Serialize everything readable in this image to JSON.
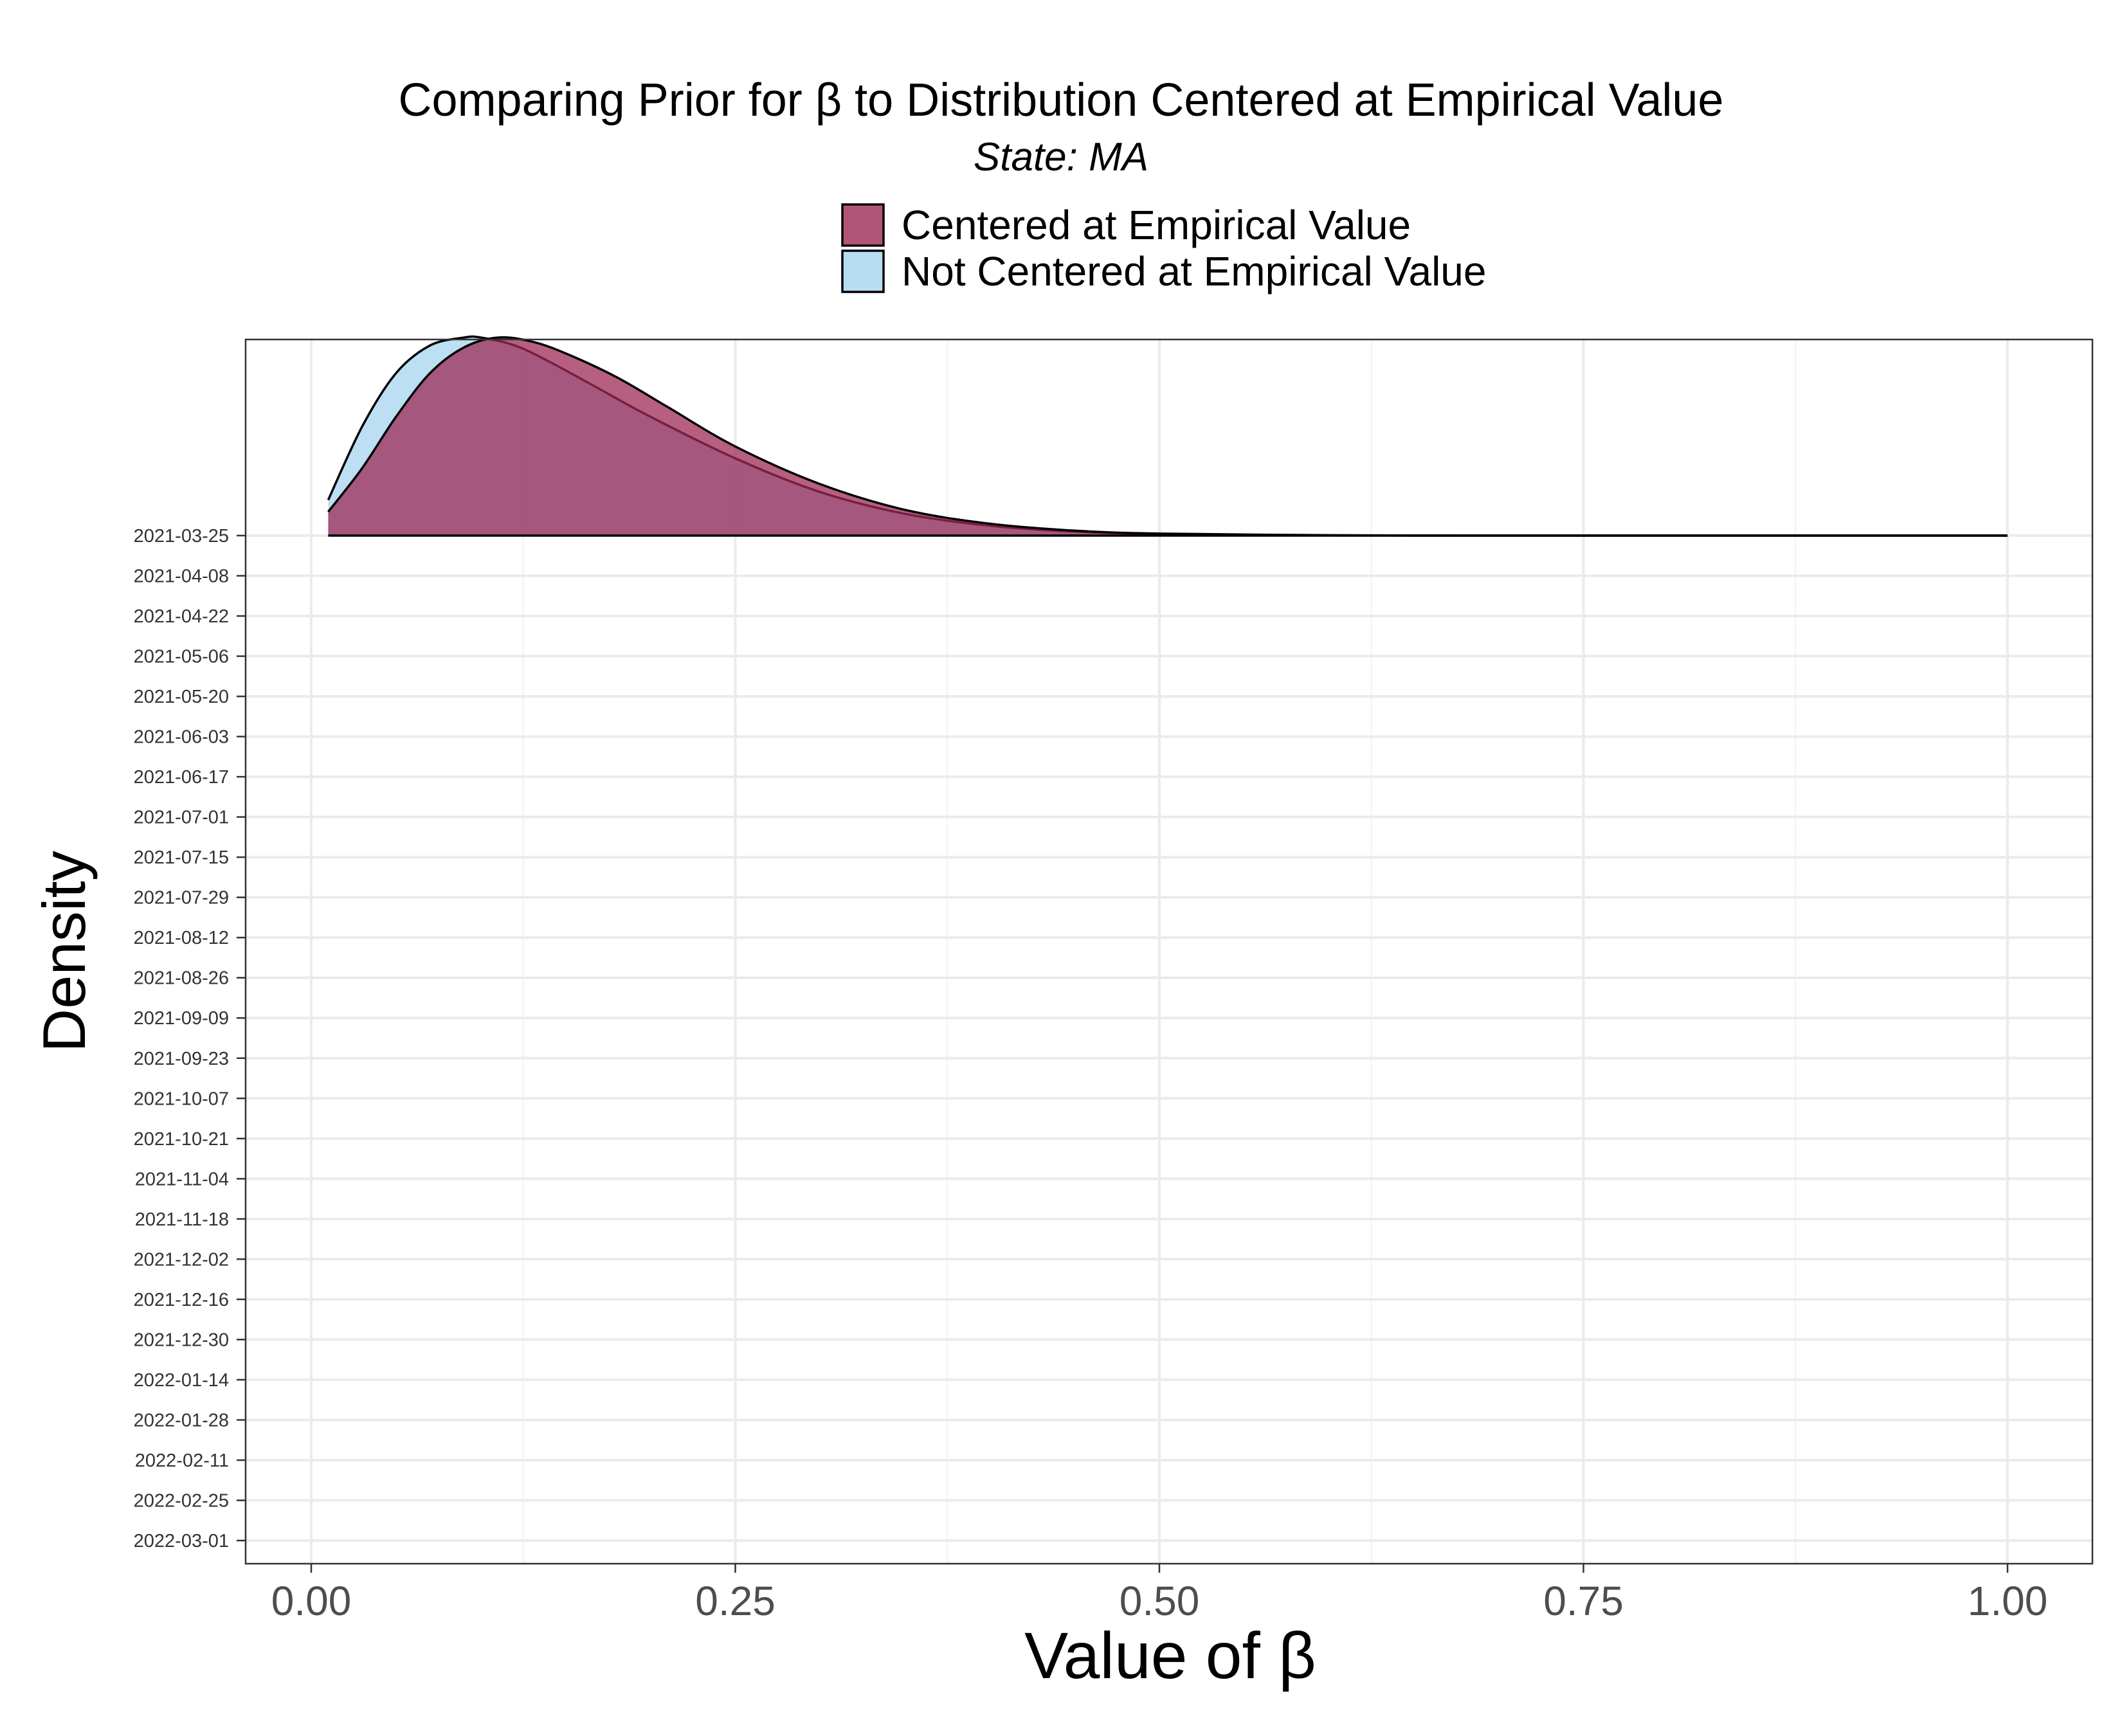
{
  "chart_data": {
    "type": "area",
    "title": "Comparing Prior for β to Distribution Centered at Empirical Value",
    "subtitle": "State: MA",
    "xlabel": "Value of β",
    "ylabel": "Density",
    "xlim": [
      0,
      1
    ],
    "x_ticks": [
      "0.00",
      "0.25",
      "0.50",
      "0.75",
      "1.00"
    ],
    "y_categories": [
      "2021-03-25",
      "2021-04-08",
      "2021-04-22",
      "2021-05-06",
      "2021-05-20",
      "2021-06-03",
      "2021-06-17",
      "2021-07-01",
      "2021-07-15",
      "2021-07-29",
      "2021-08-12",
      "2021-08-26",
      "2021-09-09",
      "2021-09-23",
      "2021-10-07",
      "2021-10-21",
      "2021-11-04",
      "2021-11-18",
      "2021-12-02",
      "2021-12-16",
      "2021-12-30",
      "2022-01-14",
      "2022-01-28",
      "2022-02-11",
      "2022-02-25",
      "2022-03-01"
    ],
    "grid": true,
    "legend_position": "top",
    "series": [
      {
        "name": "Centered at Empirical Value",
        "color": "#9e2a55",
        "category": "2021-03-25",
        "x": [
          0.01,
          0.03,
          0.05,
          0.07,
          0.09,
          0.11,
          0.13,
          0.15,
          0.18,
          0.21,
          0.25,
          0.3,
          0.35,
          0.4,
          0.45,
          0.5,
          0.6,
          0.7,
          0.8,
          0.9,
          1.0
        ],
        "y": [
          0.12,
          0.34,
          0.6,
          0.82,
          0.95,
          1.0,
          0.98,
          0.92,
          0.8,
          0.65,
          0.45,
          0.26,
          0.13,
          0.06,
          0.025,
          0.01,
          0.002,
          0.0,
          0.0,
          0.0,
          0.0
        ]
      },
      {
        "name": "Not Centered at Empirical Value",
        "color": "#a6d4ef",
        "category": "2021-03-25",
        "x": [
          0.01,
          0.03,
          0.05,
          0.07,
          0.09,
          0.1,
          0.12,
          0.14,
          0.17,
          0.2,
          0.25,
          0.3,
          0.35,
          0.4,
          0.45,
          0.5,
          0.6,
          0.7,
          0.8,
          0.9,
          1.0
        ],
        "y": [
          0.18,
          0.55,
          0.82,
          0.96,
          1.0,
          1.0,
          0.96,
          0.88,
          0.74,
          0.6,
          0.39,
          0.22,
          0.11,
          0.05,
          0.02,
          0.008,
          0.001,
          0.0,
          0.0,
          0.0,
          0.0
        ]
      }
    ]
  }
}
